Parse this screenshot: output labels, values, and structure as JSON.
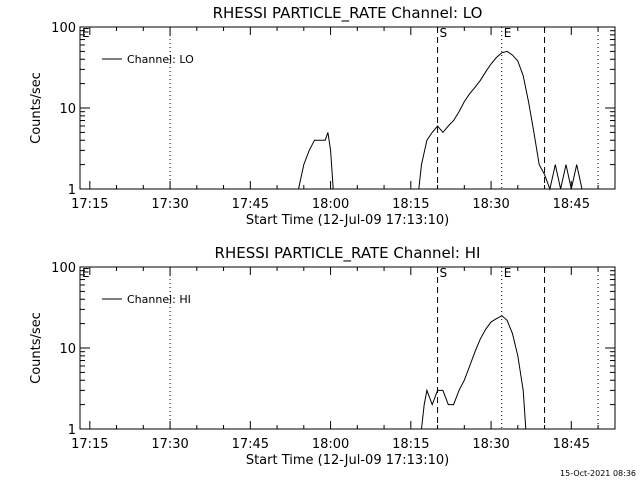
{
  "timestamp": "15-Oct-2021 08:36",
  "chart_data": [
    {
      "type": "line",
      "title": "RHESSI PARTICLE_RATE Channel: LO",
      "xlabel": "Start Time (12-Jul-09 17:13:10)",
      "ylabel": "Counts/sec",
      "yscale": "log",
      "ylim": [
        1,
        100
      ],
      "xlim": [
        "17:13:10",
        "18:53:10"
      ],
      "xticks": [
        "17:15",
        "17:30",
        "17:45",
        "18:00",
        "18:15",
        "18:30",
        "18:45"
      ],
      "yticks": [
        "1",
        "10",
        "100"
      ],
      "grid": false,
      "legend": "top-left",
      "series": [
        {
          "name": "Channel: LO",
          "x": [
            "17:54:00",
            "17:55:00",
            "17:56:00",
            "17:57:00",
            "17:58:00",
            "17:59:00",
            "17:59:30",
            "18:00:00",
            "18:00:30",
            "18:16:30",
            "18:17:00",
            "18:18:00",
            "18:19:00",
            "18:20:00",
            "18:21:00",
            "18:22:00",
            "18:23:00",
            "18:24:00",
            "18:25:00",
            "18:26:00",
            "18:27:00",
            "18:28:00",
            "18:29:00",
            "18:30:00",
            "18:31:00",
            "18:32:00",
            "18:33:00",
            "18:34:00",
            "18:35:00",
            "18:36:00",
            "18:37:00",
            "18:38:00",
            "18:39:00",
            "18:40:00",
            "18:41:00",
            "18:42:00",
            "18:43:00",
            "18:44:00",
            "18:45:00",
            "18:46:00",
            "18:47:00"
          ],
          "y": [
            1,
            2.0,
            3.0,
            4.0,
            4.0,
            4.0,
            5.0,
            3.0,
            1,
            1,
            2.0,
            4.0,
            5.0,
            6.0,
            5.0,
            6.0,
            7.0,
            9.0,
            12,
            15,
            18,
            22,
            28,
            35,
            42,
            48,
            50,
            45,
            38,
            25,
            12,
            5,
            2.0,
            1.5,
            1,
            2.0,
            1,
            2.0,
            1,
            2.0,
            1
          ],
          "color": "#000000"
        }
      ],
      "annotations": [
        {
          "label": "E",
          "x": "17:13:10",
          "style": "none"
        },
        {
          "label": "",
          "x": "17:30:00",
          "style": "dotted"
        },
        {
          "label": "S",
          "x": "18:20:00",
          "style": "dashed"
        },
        {
          "label": "E",
          "x": "18:32:00",
          "style": "dotted"
        },
        {
          "label": "",
          "x": "18:40:00",
          "style": "dashed"
        },
        {
          "label": "",
          "x": "18:50:00",
          "style": "dotted"
        }
      ]
    },
    {
      "type": "line",
      "title": "RHESSI PARTICLE_RATE Channel: HI",
      "xlabel": "Start Time (12-Jul-09 17:13:10)",
      "ylabel": "Counts/sec",
      "yscale": "log",
      "ylim": [
        1,
        100
      ],
      "xlim": [
        "17:13:10",
        "18:53:10"
      ],
      "xticks": [
        "17:15",
        "17:30",
        "17:45",
        "18:00",
        "18:15",
        "18:30",
        "18:45"
      ],
      "yticks": [
        "1",
        "10",
        "100"
      ],
      "grid": false,
      "legend": "top-left",
      "series": [
        {
          "name": "Channel: HI",
          "x": [
            "18:17:00",
            "18:17:30",
            "18:18:00",
            "18:19:00",
            "18:20:00",
            "18:21:00",
            "18:22:00",
            "18:23:00",
            "18:24:00",
            "18:25:00",
            "18:26:00",
            "18:27:00",
            "18:28:00",
            "18:29:00",
            "18:30:00",
            "18:31:00",
            "18:32:00",
            "18:33:00",
            "18:34:00",
            "18:35:00",
            "18:36:00",
            "18:36:30"
          ],
          "y": [
            1,
            2.0,
            3.0,
            2.0,
            3.0,
            3.0,
            2.0,
            2.0,
            3.0,
            4.0,
            6.0,
            9.0,
            13,
            17,
            21,
            23,
            25,
            22,
            15,
            8.0,
            3.0,
            1
          ],
          "color": "#000000"
        }
      ],
      "annotations": [
        {
          "label": "E",
          "x": "17:13:10",
          "style": "none"
        },
        {
          "label": "",
          "x": "17:30:00",
          "style": "dotted"
        },
        {
          "label": "S",
          "x": "18:20:00",
          "style": "dashed"
        },
        {
          "label": "E",
          "x": "18:32:00",
          "style": "dotted"
        },
        {
          "label": "",
          "x": "18:40:00",
          "style": "dashed"
        },
        {
          "label": "",
          "x": "18:50:00",
          "style": "dotted"
        }
      ]
    }
  ]
}
